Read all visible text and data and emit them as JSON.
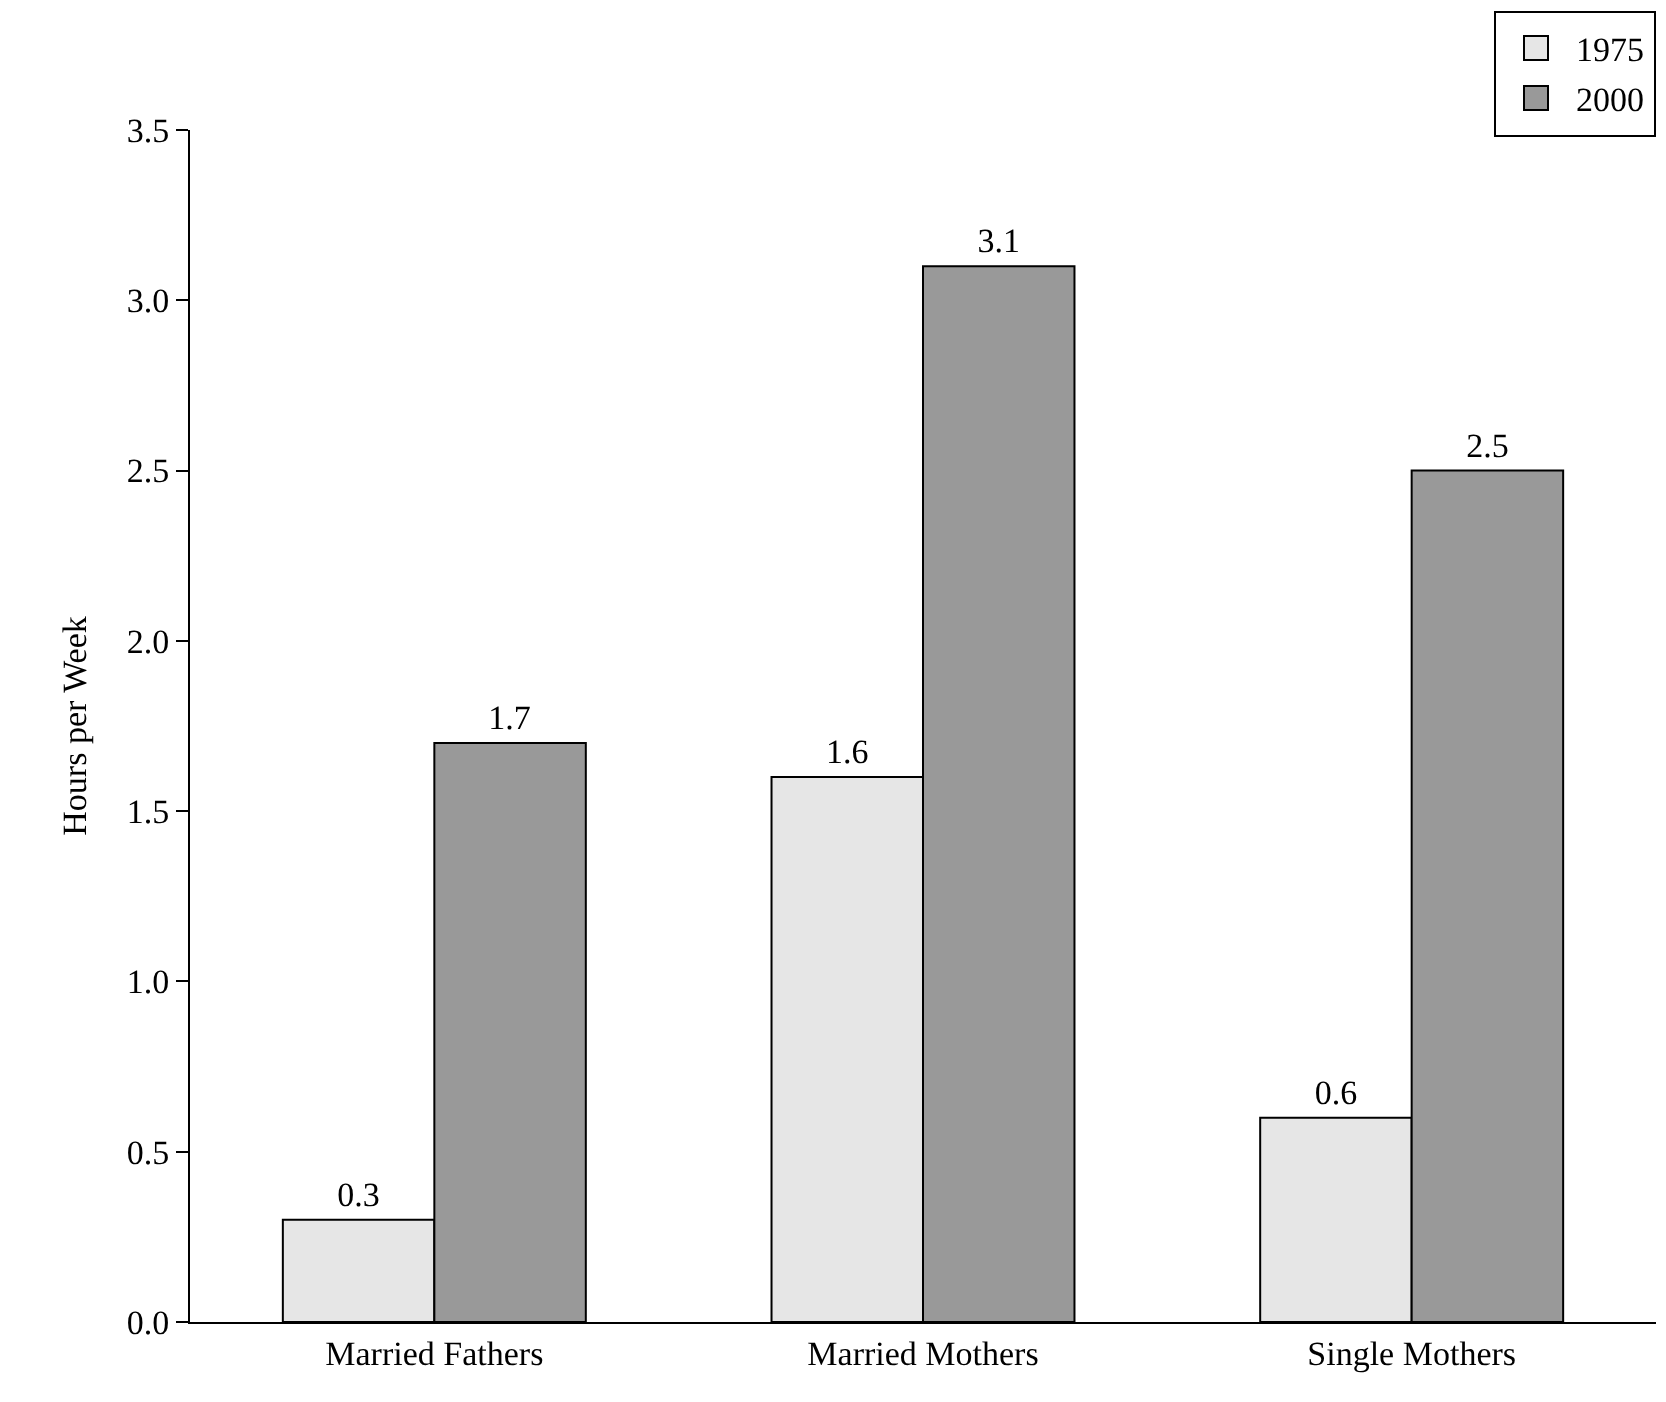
{
  "chart_data": {
    "type": "bar",
    "ylabel": "Hours per Week",
    "categories": [
      "Married Fathers",
      "Married Mothers",
      "Single Mothers"
    ],
    "series": [
      {
        "name": "1975",
        "color": "#e6e6e6",
        "values": [
          0.3,
          1.6,
          0.6
        ]
      },
      {
        "name": "2000",
        "color": "#999999",
        "values": [
          1.7,
          3.1,
          2.5
        ]
      }
    ],
    "ylim": [
      0,
      3.5
    ],
    "yticks": [
      {
        "value": 0,
        "label": "0.0"
      },
      {
        "value": 0.5,
        "label": "0.5"
      },
      {
        "value": 1,
        "label": "1.0"
      },
      {
        "value": 1.5,
        "label": "1.5"
      },
      {
        "value": 2,
        "label": "2.0"
      },
      {
        "value": 2.5,
        "label": "2.5"
      },
      {
        "value": 3,
        "label": "3.0"
      },
      {
        "value": 3.5,
        "label": "3.5"
      }
    ],
    "data_labels": true,
    "legend": "top right"
  }
}
